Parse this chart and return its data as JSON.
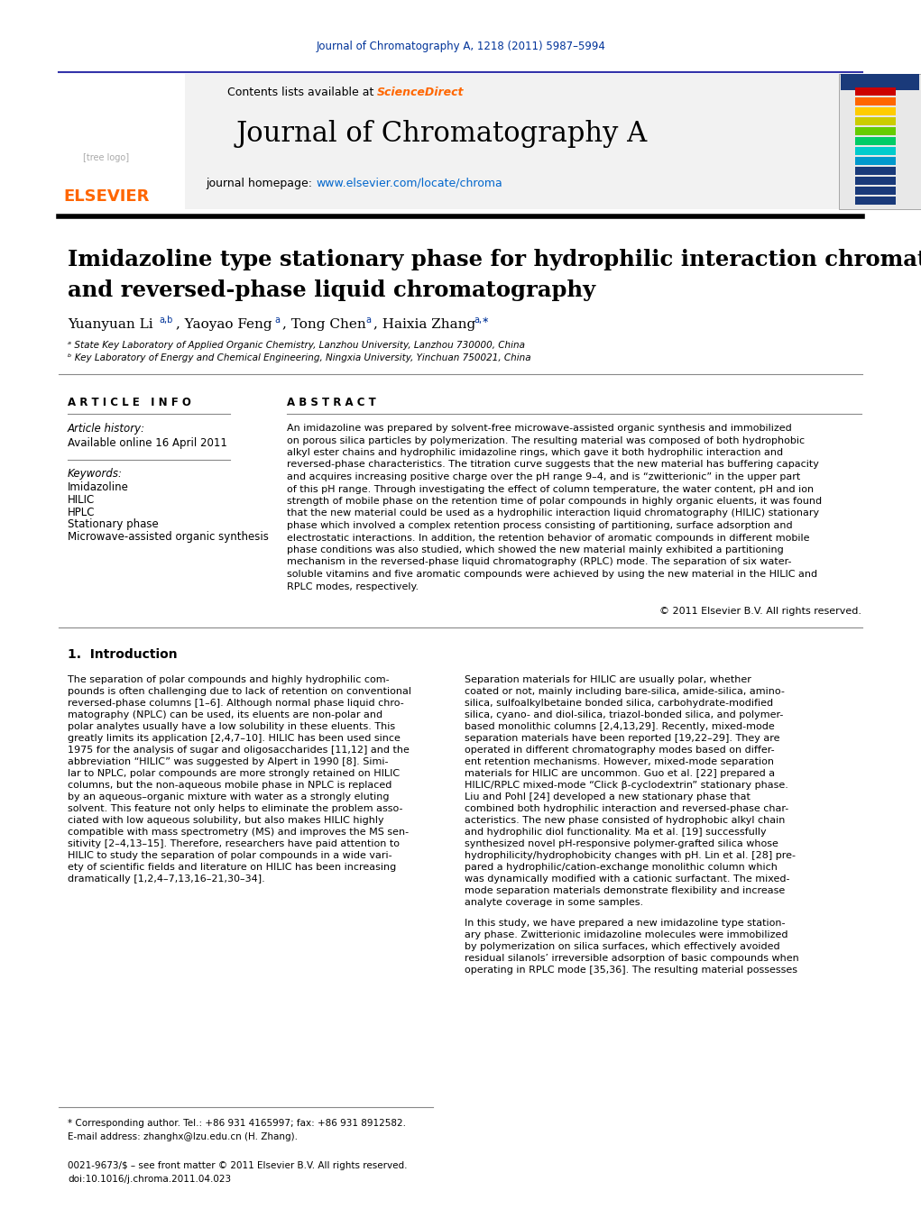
{
  "top_journal_ref": "Journal of Chromatography A, 1218 (2011) 5987–5994",
  "top_journal_ref_color": "#003399",
  "header_bg_color": "#f0f0f0",
  "header_border_color": "#4a4a8a",
  "contents_text": "Contents lists available at ",
  "sciencedirect_text": "ScienceDirect",
  "sciencedirect_color": "#ff6600",
  "journal_title": "Journal of Chromatography A",
  "homepage_text": "journal homepage: ",
  "homepage_url": "www.elsevier.com/locate/chroma",
  "homepage_url_color": "#0066cc",
  "divider_color": "#000000",
  "article_title_line1": "Imidazoline type stationary phase for hydrophilic interaction chromatography",
  "article_title_line2": "and reversed-phase liquid chromatography",
  "affiliation_a": "ᵃ State Key Laboratory of Applied Organic Chemistry, Lanzhou University, Lanzhou 730000, China",
  "affiliation_b": "ᵇ Key Laboratory of Energy and Chemical Engineering, Ningxia University, Yinchuan 750021, China",
  "article_info_header": "A R T I C L E   I N F O",
  "article_history_label": "Article history:",
  "article_history_value": "Available online 16 April 2011",
  "keywords_label": "Keywords:",
  "keywords": [
    "Imidazoline",
    "HILIC",
    "HPLC",
    "Stationary phase",
    "Microwave-assisted organic synthesis"
  ],
  "abstract_header": "A B S T R A C T",
  "copyright_text": "© 2011 Elsevier B.V. All rights reserved.",
  "intro_header": "1.  Introduction",
  "footer_note1": "* Corresponding author. Tel.: +86 931 4165997; fax: +86 931 8912582.",
  "footer_note2": "E-mail address: zhanghx@lzu.edu.cn (H. Zhang).",
  "footer_issn": "0021-9673/$ – see front matter © 2011 Elsevier B.V. All rights reserved.",
  "footer_doi": "doi:10.1016/j.chroma.2011.04.023",
  "bg_color": "#ffffff",
  "text_color": "#000000",
  "link_color": "#0066cc",
  "abstract_lines": [
    "An imidazoline was prepared by solvent-free microwave-assisted organic synthesis and immobilized",
    "on porous silica particles by polymerization. The resulting material was composed of both hydrophobic",
    "alkyl ester chains and hydrophilic imidazoline rings, which gave it both hydrophilic interaction and",
    "reversed-phase characteristics. The titration curve suggests that the new material has buffering capacity",
    "and acquires increasing positive charge over the pH range 9–4, and is “zwitterionic” in the upper part",
    "of this pH range. Through investigating the effect of column temperature, the water content, pH and ion",
    "strength of mobile phase on the retention time of polar compounds in highly organic eluents, it was found",
    "that the new material could be used as a hydrophilic interaction liquid chromatography (HILIC) stationary",
    "phase which involved a complex retention process consisting of partitioning, surface adsorption and",
    "electrostatic interactions. In addition, the retention behavior of aromatic compounds in different mobile",
    "phase conditions was also studied, which showed the new material mainly exhibited a partitioning",
    "mechanism in the reversed-phase liquid chromatography (RPLC) mode. The separation of six water-",
    "soluble vitamins and five aromatic compounds were achieved by using the new material in the HILIC and",
    "RPLC modes, respectively."
  ],
  "intro_col1_lines": [
    "The separation of polar compounds and highly hydrophilic com-",
    "pounds is often challenging due to lack of retention on conventional",
    "reversed-phase columns [1–6]. Although normal phase liquid chro-",
    "matography (NPLC) can be used, its eluents are non-polar and",
    "polar analytes usually have a low solubility in these eluents. This",
    "greatly limits its application [2,4,7–10]. HILIC has been used since",
    "1975 for the analysis of sugar and oligosaccharides [11,12] and the",
    "abbreviation “HILIC” was suggested by Alpert in 1990 [8]. Simi-",
    "lar to NPLC, polar compounds are more strongly retained on HILIC",
    "columns, but the non-aqueous mobile phase in NPLC is replaced",
    "by an aqueous–organic mixture with water as a strongly eluting",
    "solvent. This feature not only helps to eliminate the problem asso-",
    "ciated with low aqueous solubility, but also makes HILIC highly",
    "compatible with mass spectrometry (MS) and improves the MS sen-",
    "sitivity [2–4,13–15]. Therefore, researchers have paid attention to",
    "HILIC to study the separation of polar compounds in a wide vari-",
    "ety of scientific fields and literature on HILIC has been increasing",
    "dramatically [1,2,4–7,13,16–21,30–34]."
  ],
  "intro_col2_lines": [
    "Separation materials for HILIC are usually polar, whether",
    "coated or not, mainly including bare-silica, amide-silica, amino-",
    "silica, sulfoalkylbetaine bonded silica, carbohydrate-modified",
    "silica, cyano- and diol-silica, triazol-bonded silica, and polymer-",
    "based monolithic columns [2,4,13,29]. Recently, mixed-mode",
    "separation materials have been reported [19,22–29]. They are",
    "operated in different chromatography modes based on differ-",
    "ent retention mechanisms. However, mixed-mode separation",
    "materials for HILIC are uncommon. Guo et al. [22] prepared a",
    "HILIC/RPLC mixed-mode “Click β-cyclodextrin” stationary phase.",
    "Liu and Pohl [24] developed a new stationary phase that",
    "combined both hydrophilic interaction and reversed-phase char-",
    "acteristics. The new phase consisted of hydrophobic alkyl chain",
    "and hydrophilic diol functionality. Ma et al. [19] successfully",
    "synthesized novel pH-responsive polymer-grafted silica whose",
    "hydrophilicity/hydrophobicity changes with pH. Lin et al. [28] pre-",
    "pared a hydrophilic/cation-exchange monolithic column which",
    "was dynamically modified with a cationic surfactant. The mixed-",
    "mode separation materials demonstrate flexibility and increase",
    "analyte coverage in some samples."
  ],
  "intro_col2_p2_lines": [
    "In this study, we have prepared a new imidazoline type station-",
    "ary phase. Zwitterionic imidazoline molecules were immobilized",
    "by polymerization on silica surfaces, which effectively avoided",
    "residual silanols’ irreversible adsorption of basic compounds when",
    "operating in RPLC mode [35,36]. The resulting material possesses"
  ],
  "cover_strip_colors": [
    "#1a3a7a",
    "#1a3a7a",
    "#1a3a7a",
    "#1a3a7a",
    "#0099cc",
    "#00cccc",
    "#00cc66",
    "#66cc00",
    "#cccc00",
    "#ffcc00",
    "#ff6600",
    "#cc0000"
  ]
}
